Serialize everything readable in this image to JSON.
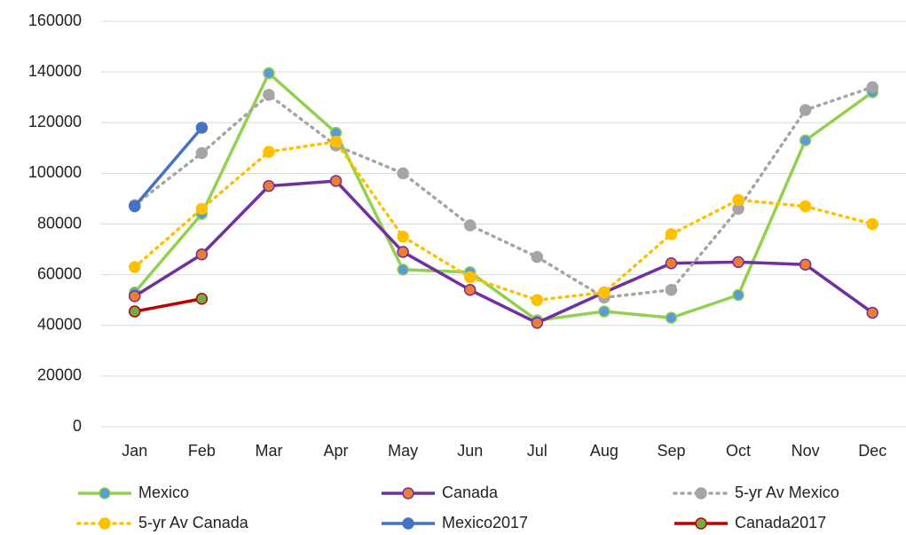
{
  "chart_data": {
    "type": "line",
    "categories": [
      "Jan",
      "Feb",
      "Mar",
      "Apr",
      "May",
      "Jun",
      "Jul",
      "Aug",
      "Sep",
      "Oct",
      "Nov",
      "Dec"
    ],
    "ylim": [
      0,
      160000
    ],
    "yticks": [
      0,
      20000,
      40000,
      60000,
      80000,
      100000,
      120000,
      140000,
      160000
    ],
    "grid": true,
    "legend": "bottom",
    "series": [
      {
        "name": "Mexico",
        "color": "#92d050",
        "marker_color": "#5b9bd5",
        "line_style": "solid",
        "values": [
          53000,
          84000,
          139500,
          116000,
          62000,
          61000,
          42000,
          45500,
          43000,
          52000,
          113000,
          132000
        ]
      },
      {
        "name": "Canada",
        "color": "#7030a0",
        "marker_color": "#ed7d31",
        "line_style": "solid",
        "values": [
          51500,
          68000,
          95000,
          97000,
          69000,
          54000,
          41000,
          53000,
          64500,
          65000,
          64000,
          45000
        ]
      },
      {
        "name": "5-yr Av Mexico",
        "color": "#a5a5a5",
        "marker_color": "#a5a5a5",
        "line_style": "dotted",
        "values": [
          87500,
          108000,
          131000,
          111000,
          100000,
          79500,
          67000,
          51000,
          54000,
          86000,
          125000,
          134000
        ]
      },
      {
        "name": "5-yr Av Canada",
        "color": "#ffc000",
        "marker_color": "#ffc000",
        "line_style": "dotted",
        "values": [
          63000,
          86000,
          108500,
          112500,
          75000,
          59000,
          50000,
          53000,
          76000,
          89500,
          87000,
          80000
        ]
      },
      {
        "name": "Mexico2017",
        "color": "#4472c4",
        "marker_color": "#4472c4",
        "line_style": "solid",
        "values": [
          87000,
          118000,
          null,
          null,
          null,
          null,
          null,
          null,
          null,
          null,
          null,
          null
        ]
      },
      {
        "name": "Canada2017",
        "color": "#c00000",
        "marker_color": "#70ad47",
        "line_style": "solid",
        "values": [
          45500,
          50500,
          null,
          null,
          null,
          null,
          null,
          null,
          null,
          null,
          null,
          null
        ]
      }
    ]
  }
}
